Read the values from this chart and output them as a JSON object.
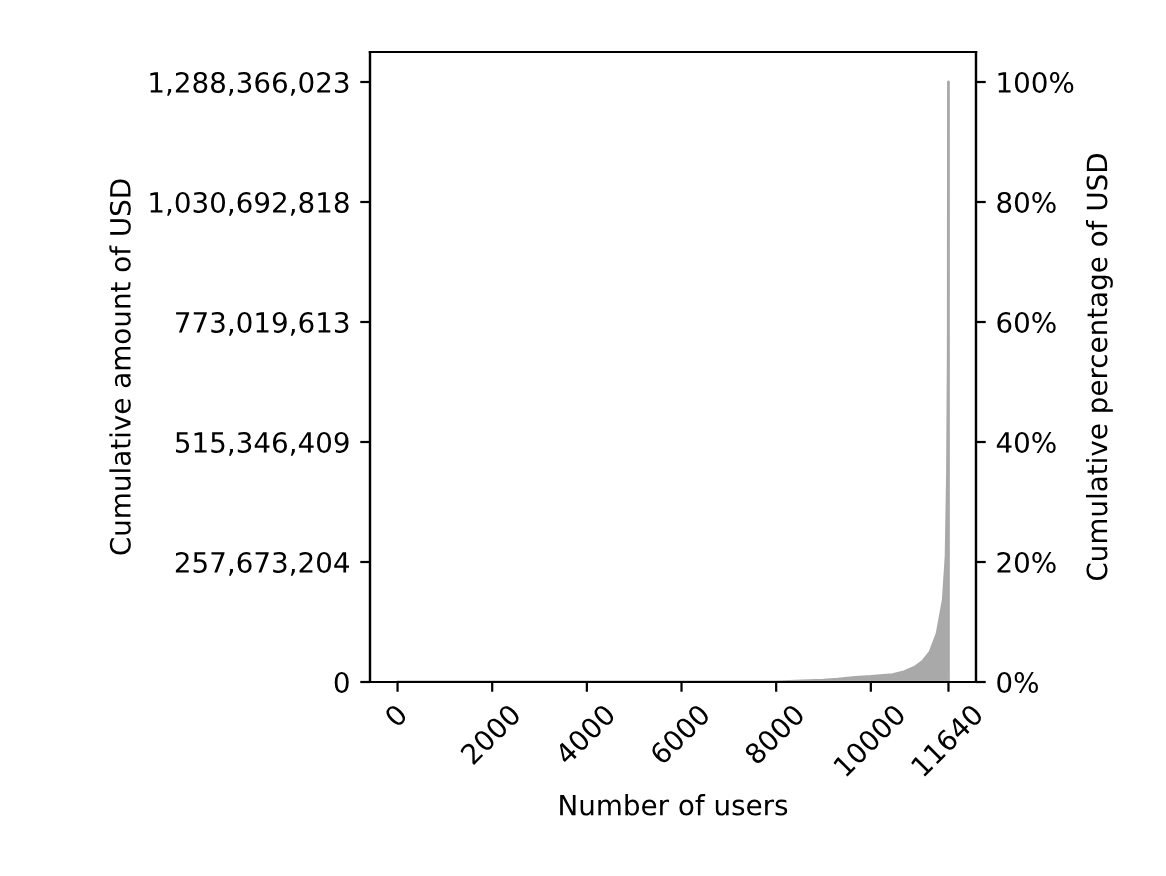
{
  "chart_data": {
    "type": "area",
    "xlabel": "Number of users",
    "ylabel": "Cumulative amount of USD",
    "y2label": "Cumulative percentage of USD",
    "x": [
      0,
      2000,
      4000,
      6000,
      8000,
      8700,
      9000,
      9300,
      9670,
      10000,
      10460,
      10700,
      10930,
      11100,
      11250,
      11400,
      11530,
      11590,
      11620,
      11635,
      11640
    ],
    "series": [
      {
        "color": "#a9a9a9",
        "values": [
          0,
          0,
          0,
          0,
          0,
          3000000,
          4000000,
          6000000,
          10000000,
          12000000,
          16000000,
          22000000,
          32000000,
          45000000,
          64000000,
          104000000,
          176000000,
          270000000,
          450000000,
          700000000,
          1288366023
        ]
      }
    ],
    "xlim": [
      -582,
      12222
    ],
    "xticks": [
      0,
      2000,
      4000,
      6000,
      8000,
      10000,
      11640
    ],
    "ylim": [
      0,
      1352784324
    ],
    "yticks": [
      0,
      {
        "value": 257673204,
        "label": "257,673,204"
      },
      {
        "value": 515346409,
        "label": "515,346,409"
      },
      {
        "value": 773019613,
        "label": "773,019,613"
      },
      {
        "value": 1030692818,
        "label": "1,030,692,818"
      },
      {
        "value": 1288366023,
        "label": "1,288,366,023"
      }
    ],
    "y2lim": [
      0,
      105
    ],
    "y2ticks": [
      {
        "value": 0,
        "label": "0%"
      },
      {
        "value": 20,
        "label": "20%"
      },
      {
        "value": 40,
        "label": "40%"
      },
      {
        "value": 60,
        "label": "60%"
      },
      {
        "value": 80,
        "label": "80%"
      },
      {
        "value": 100,
        "label": "100%"
      }
    ],
    "grid": false,
    "legend": false
  }
}
